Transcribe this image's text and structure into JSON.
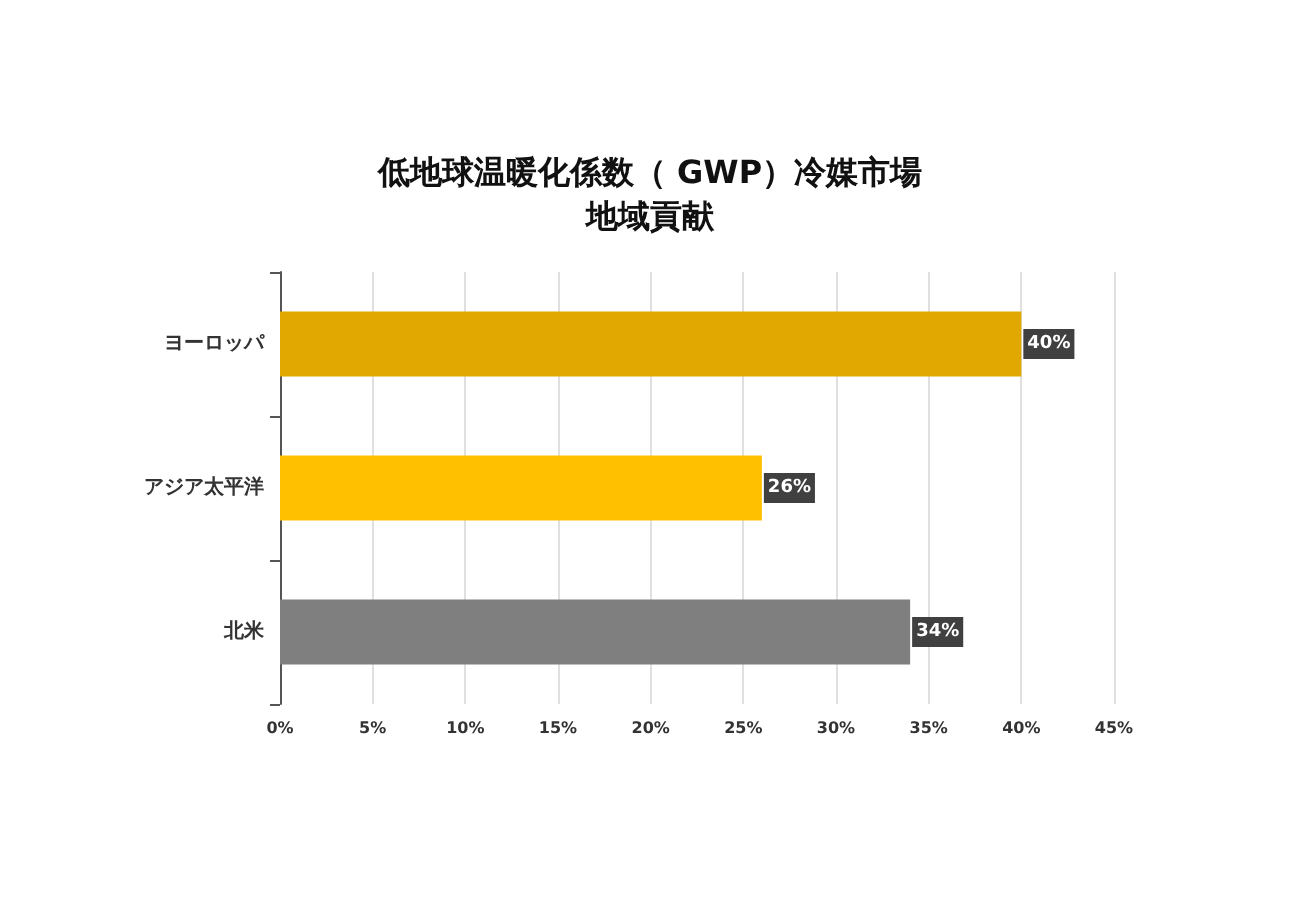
{
  "chart_data": {
    "type": "bar",
    "orientation": "horizontal",
    "title": "低地球温暖化係数（ GWP）冷媒市場地域貢献",
    "categories": [
      "ヨーロッパ",
      "アジア太平洋",
      "北米"
    ],
    "values": [
      40,
      26,
      34
    ],
    "colors": [
      "#e0a800",
      "#ffc000",
      "#7f7f7f"
    ],
    "value_labels": [
      "40%",
      "26%",
      "34%"
    ],
    "xlim": [
      0,
      45
    ],
    "xticks": [
      {
        "value": 0,
        "label": "0%"
      },
      {
        "value": 5,
        "label": "5%"
      },
      {
        "value": 10,
        "label": "10%"
      },
      {
        "value": 15,
        "label": "15%"
      },
      {
        "value": 20,
        "label": "20%"
      },
      {
        "value": 25,
        "label": "25%"
      },
      {
        "value": 30,
        "label": "30%"
      },
      {
        "value": 35,
        "label": "35%"
      },
      {
        "value": 40,
        "label": "40%"
      },
      {
        "value": 45,
        "label": "45%"
      }
    ],
    "grid": "x"
  }
}
